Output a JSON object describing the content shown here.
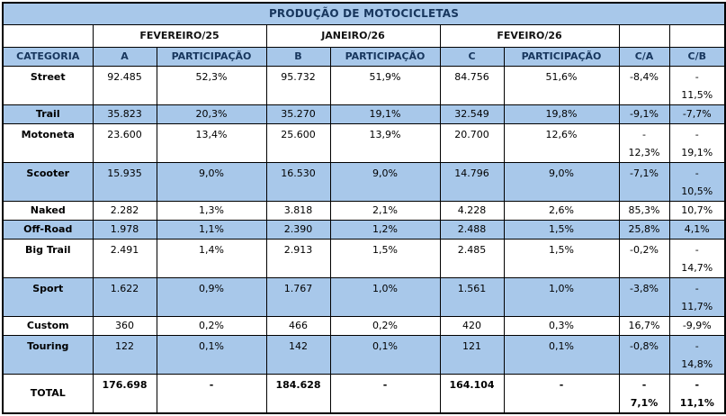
{
  "colors": {
    "blue": "#A8C8EA",
    "border": "#000000",
    "header_text": "#17365D"
  },
  "table": {
    "title": "PRODUÇÃO DE MOTOCICLETAS",
    "months": [
      "FEVEREIRO/25",
      "JANEIRO/26",
      "FEVEIRO/26"
    ],
    "columns": [
      "CATEGORIA",
      "A",
      "PARTICIPAÇÃO",
      "B",
      "PARTICIPAÇÃO",
      "C",
      "PARTICIPAÇÃO",
      "C/A",
      "C/B"
    ],
    "rows": [
      {
        "cells": [
          "Street",
          "92.485",
          "52,3%",
          "95.732",
          "51,9%",
          "84.756",
          "51,6%",
          "-8,4%",
          "-\n11,5%"
        ],
        "shaded": false,
        "tall": true,
        "total": false
      },
      {
        "cells": [
          "Trail",
          "35.823",
          "20,3%",
          "35.270",
          "19,1%",
          "32.549",
          "19,8%",
          "-9,1%",
          "-7,7%"
        ],
        "shaded": true,
        "tall": false,
        "total": false
      },
      {
        "cells": [
          "Motoneta",
          "23.600",
          "13,4%",
          "25.600",
          "13,9%",
          "20.700",
          "12,6%",
          "-\n12,3%",
          "-\n19,1%"
        ],
        "shaded": false,
        "tall": true,
        "total": false
      },
      {
        "cells": [
          "Scooter",
          "15.935",
          "9,0%",
          "16.530",
          "9,0%",
          "14.796",
          "9,0%",
          "-7,1%",
          "-\n10,5%"
        ],
        "shaded": true,
        "tall": true,
        "total": false
      },
      {
        "cells": [
          "Naked",
          "2.282",
          "1,3%",
          "3.818",
          "2,1%",
          "4.228",
          "2,6%",
          "85,3%",
          "10,7%"
        ],
        "shaded": false,
        "tall": false,
        "total": false
      },
      {
        "cells": [
          "Off-Road",
          "1.978",
          "1,1%",
          "2.390",
          "1,2%",
          "2.488",
          "1,5%",
          "25,8%",
          "4,1%"
        ],
        "shaded": true,
        "tall": false,
        "total": false
      },
      {
        "cells": [
          "Big Trail",
          "2.491",
          "1,4%",
          "2.913",
          "1,5%",
          "2.485",
          "1,5%",
          "-0,2%",
          "-\n14,7%"
        ],
        "shaded": false,
        "tall": true,
        "total": false
      },
      {
        "cells": [
          "Sport",
          "1.622",
          "0,9%",
          "1.767",
          "1,0%",
          "1.561",
          "1,0%",
          "-3,8%",
          "-\n11,7%"
        ],
        "shaded": true,
        "tall": true,
        "total": false
      },
      {
        "cells": [
          "Custom",
          "360",
          "0,2%",
          "466",
          "0,2%",
          "420",
          "0,3%",
          "16,7%",
          "-9,9%"
        ],
        "shaded": false,
        "tall": false,
        "total": false
      },
      {
        "cells": [
          "Touring",
          "122",
          "0,1%",
          "142",
          "0,1%",
          "121",
          "0,1%",
          "-0,8%",
          "-\n14,8%"
        ],
        "shaded": true,
        "tall": true,
        "total": false
      },
      {
        "cells": [
          "TOTAL",
          "176.698",
          "-",
          "184.628",
          "-",
          "164.104",
          "-",
          "-\n7,1%",
          "-\n11,1%"
        ],
        "shaded": false,
        "tall": true,
        "total": true
      }
    ]
  },
  "chart_data": {
    "type": "table",
    "title": "PRODUÇÃO DE MOTOCICLETAS",
    "categories": [
      "Street",
      "Trail",
      "Motoneta",
      "Scooter",
      "Naked",
      "Off-Road",
      "Big Trail",
      "Sport",
      "Custom",
      "Touring"
    ],
    "series": [
      {
        "name": "FEVEREIRO/25 (A)",
        "values": [
          92485,
          35823,
          23600,
          15935,
          2282,
          1978,
          2491,
          1622,
          360,
          122
        ],
        "participation_pct": [
          52.3,
          20.3,
          13.4,
          9.0,
          1.3,
          1.1,
          1.4,
          0.9,
          0.2,
          0.1
        ],
        "total": 176698
      },
      {
        "name": "JANEIRO/26 (B)",
        "values": [
          95732,
          35270,
          25600,
          16530,
          3818,
          2390,
          2913,
          1767,
          466,
          142
        ],
        "participation_pct": [
          51.9,
          19.1,
          13.9,
          9.0,
          2.1,
          1.2,
          1.5,
          1.0,
          0.2,
          0.1
        ],
        "total": 184628
      },
      {
        "name": "FEVEIRO/26 (C)",
        "values": [
          84756,
          32549,
          20700,
          14796,
          4228,
          2488,
          2485,
          1561,
          420,
          121
        ],
        "participation_pct": [
          51.6,
          19.8,
          12.6,
          9.0,
          2.6,
          1.5,
          1.5,
          1.0,
          0.3,
          0.1
        ],
        "total": 164104
      }
    ],
    "variation_pct": {
      "C_over_A": [
        -8.4,
        -9.1,
        -12.3,
        -7.1,
        85.3,
        25.8,
        -0.2,
        -3.8,
        16.7,
        -0.8
      ],
      "C_over_A_total": -7.1,
      "C_over_B": [
        -11.5,
        -7.7,
        -19.1,
        -10.5,
        10.7,
        4.1,
        -14.7,
        -11.7,
        -9.9,
        -14.8
      ],
      "C_over_B_total": -11.1
    }
  }
}
